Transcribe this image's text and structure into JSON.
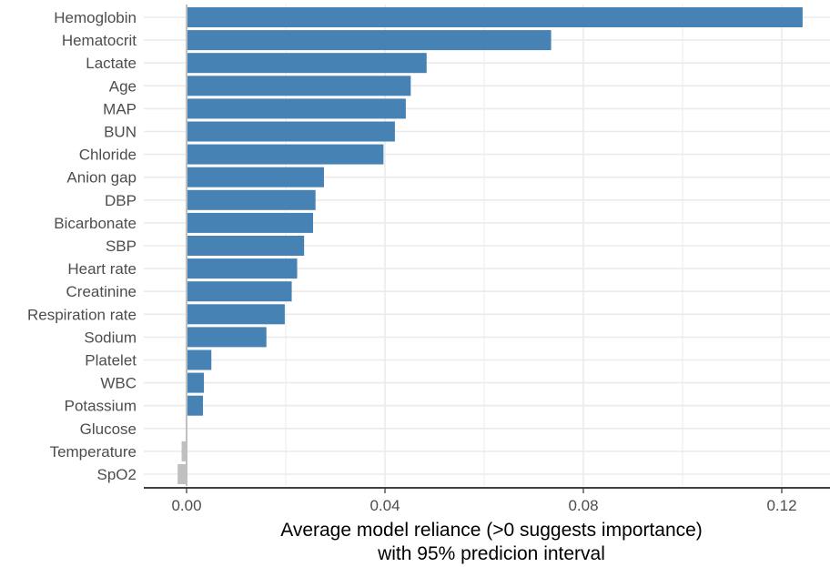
{
  "chart_data": {
    "type": "bar",
    "orientation": "horizontal",
    "title": "",
    "xlabel_lines": [
      "Average model reliance (>0 suggests importance)",
      "with 95% predicion interval"
    ],
    "ylabel": "",
    "xlim": [
      -0.008,
      0.128
    ],
    "xticks": [
      0.0,
      0.04,
      0.08,
      0.12
    ],
    "xtick_labels": [
      "0.00",
      "0.04",
      "0.08",
      "0.12"
    ],
    "grid": "on",
    "legend": "none",
    "colors": {
      "positive": "#4682b4",
      "nonpositive": "#c0c0c0",
      "grid": "#ebebeb",
      "zero_line": "#c0c0c0",
      "axis": "#000000"
    },
    "categories": [
      "Hemoglobin",
      "Hematocrit",
      "Lactate",
      "Age",
      "MAP",
      "BUN",
      "Chloride",
      "Anion gap",
      "DBP",
      "Bicarbonate",
      "SBP",
      "Heart rate",
      "Creatinine",
      "Respiration rate",
      "Sodium",
      "Platelet",
      "WBC",
      "Potassium",
      "Glucose",
      "Temperature",
      "SpO2"
    ],
    "values": [
      0.1242,
      0.0735,
      0.0484,
      0.0452,
      0.0442,
      0.042,
      0.0397,
      0.0277,
      0.026,
      0.0255,
      0.0237,
      0.0223,
      0.0212,
      0.0198,
      0.0161,
      0.005,
      0.0035,
      0.0033,
      0.0,
      -0.001,
      -0.0018
    ]
  }
}
